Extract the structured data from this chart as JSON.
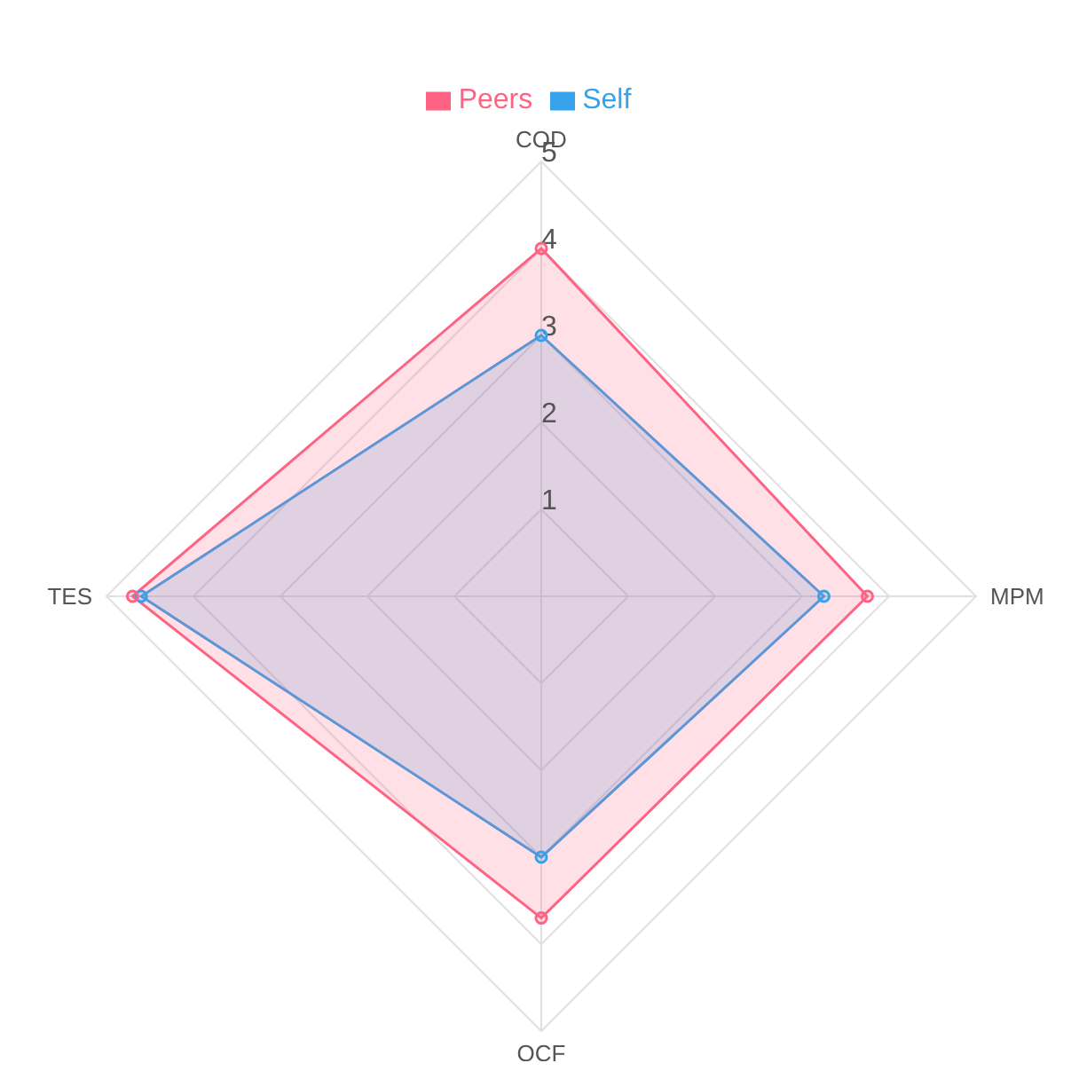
{
  "chart_data": {
    "type": "radar",
    "categories": [
      "COD",
      "MPM",
      "OCF",
      "TES"
    ],
    "series": [
      {
        "name": "Self",
        "color": "#36a2eb",
        "values": [
          3,
          3.25,
          3,
          4.6
        ]
      },
      {
        "name": "Peers",
        "color": "#ff6384",
        "values": [
          4,
          3.75,
          3.7,
          4.7
        ]
      }
    ],
    "ylim": [
      0,
      5
    ],
    "yticks": [
      1,
      2,
      3,
      4,
      5
    ],
    "grid": true,
    "legend": "top",
    "marker": "circle"
  }
}
